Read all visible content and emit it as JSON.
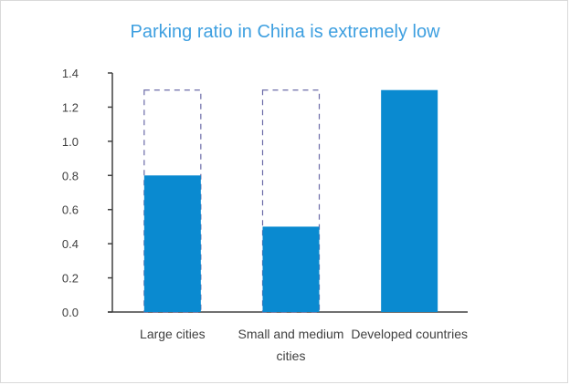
{
  "chart_data": {
    "type": "bar",
    "title": "Parking ratio in China is extremely low",
    "xlabel": "",
    "ylabel": "",
    "categories": [
      [
        "Large cities"
      ],
      [
        "Small and medium",
        "cities"
      ],
      [
        "Developed countries"
      ]
    ],
    "values": [
      0.8,
      0.5,
      1.3
    ],
    "target_outline_value": 1.3,
    "target_outline_on": [
      0,
      1
    ],
    "yticks": [
      "0.0",
      "0.2",
      "0.4",
      "0.6",
      "0.8",
      "1.0",
      "1.2",
      "1.4"
    ],
    "ylim": [
      0,
      1.4
    ],
    "grid": false,
    "legend": "none",
    "bar_color": "#0a8ad0",
    "outline_color": "#6b6ba8",
    "axis_color": "#404040"
  }
}
